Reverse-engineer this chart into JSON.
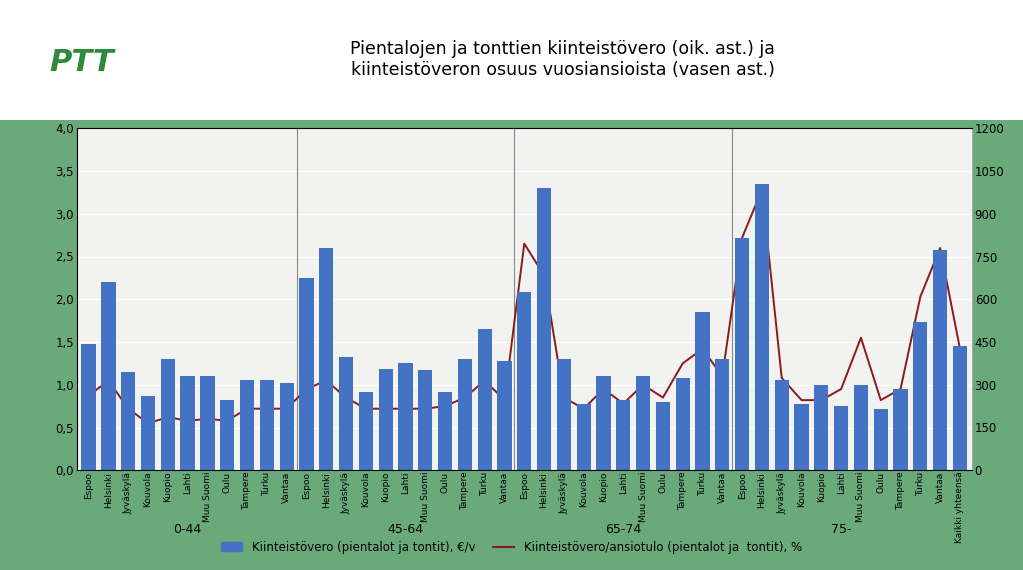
{
  "title": "Pientalojen ja tonttien kiinteistövero (oik. ast.) ja\nkiinteistöveron osuus vuosiansioista (vasen ast.)",
  "bg_color": "#6aaa7a",
  "header_bg": "#ffffff",
  "chart_bg": "#f2f2f0",
  "bar_color": "#4472C4",
  "line_color": "#8B1A1A",
  "categories": [
    "Espoo",
    "Helsinki",
    "Jyväskylä",
    "Kouvola",
    "Kuopio",
    "Lahti",
    "Muu Suomi",
    "Oulu",
    "Tampere",
    "Turku",
    "Vantaa",
    "Espoo",
    "Helsinki",
    "Jyväskylä",
    "Kouvola",
    "Kuopio",
    "Lahti",
    "Muu Suomi",
    "Oulu",
    "Tampere",
    "Turku",
    "Vantaa",
    "Espoo",
    "Helsinki",
    "Jyväskylä",
    "Kouvola",
    "Kuopio",
    "Lahti",
    "Muu Suomi",
    "Oulu",
    "Tampere",
    "Turku",
    "Vantaa",
    "Espoo",
    "Helsinki",
    "Jyväskylä",
    "Kouvola",
    "Kuopio",
    "Lahti",
    "Muu Suomi",
    "Oulu",
    "Tampere",
    "Turku",
    "Vantaa",
    "Kaikki yhteensä"
  ],
  "groups": [
    "0-44",
    "45-64",
    "65-74",
    "75-"
  ],
  "group_centers": [
    5.0,
    16.0,
    27.0,
    38.0
  ],
  "group_boundaries": [
    10.5,
    21.5,
    32.5
  ],
  "bar_values": [
    1.48,
    2.2,
    1.15,
    0.87,
    1.3,
    1.1,
    1.1,
    0.82,
    1.05,
    1.05,
    1.02,
    2.25,
    2.6,
    1.33,
    0.92,
    1.18,
    1.25,
    1.17,
    0.92,
    1.3,
    1.65,
    1.28,
    2.08,
    3.3,
    1.3,
    0.78,
    1.1,
    0.82,
    1.1,
    0.8,
    1.08,
    1.85,
    1.3,
    2.72,
    3.35,
    1.05,
    0.78,
    1.0,
    0.75,
    1.0,
    0.72,
    0.95,
    1.73,
    2.58,
    1.45
  ],
  "line_values": [
    0.87,
    1.05,
    0.72,
    0.55,
    0.62,
    0.58,
    0.6,
    0.58,
    0.72,
    0.72,
    0.72,
    0.95,
    1.05,
    0.85,
    0.72,
    0.72,
    0.72,
    0.72,
    0.75,
    0.85,
    1.05,
    0.82,
    2.65,
    2.28,
    0.85,
    0.72,
    0.95,
    0.78,
    1.0,
    0.85,
    1.25,
    1.42,
    1.1,
    2.72,
    3.28,
    1.08,
    0.82,
    0.82,
    0.95,
    1.55,
    0.82,
    0.95,
    2.03,
    2.6,
    1.42
  ],
  "ylim_left": [
    0.0,
    4.0
  ],
  "ylim_right": [
    0,
    1200
  ],
  "yticks_left": [
    0.0,
    0.5,
    1.0,
    1.5,
    2.0,
    2.5,
    3.0,
    3.5,
    4.0
  ],
  "yticks_right": [
    0,
    150,
    300,
    450,
    600,
    750,
    900,
    1050,
    1200
  ],
  "legend_bar": "Kiinteistövero (pientalot ja tontit), €/v",
  "legend_line": "Kiinteistövero/ansiotulo (pientalot ja  tontit), %",
  "figsize": [
    10.23,
    5.7
  ],
  "dpi": 100
}
